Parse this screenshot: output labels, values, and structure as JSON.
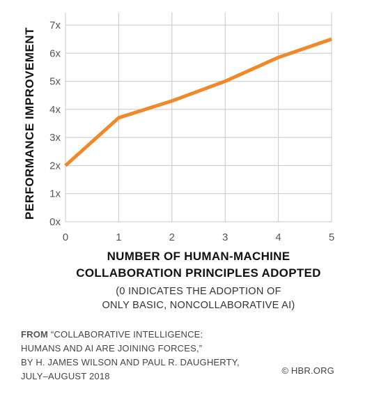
{
  "chart_data": {
    "type": "line",
    "title": "",
    "xlabel_lines": [
      "NUMBER OF HUMAN-MACHINE",
      "COLLABORATION PRINCIPLES ADOPTED"
    ],
    "xlabel_note_lines": [
      "(0 INDICATES THE ADOPTION OF",
      "ONLY BASIC, NONCOLLABORATIVE AI)"
    ],
    "ylabel": "PERFORMANCE IMPROVEMENT",
    "x": [
      0,
      1,
      2,
      3,
      4,
      5
    ],
    "series": [
      {
        "name": "",
        "color": "#f0892a",
        "values": [
          2.0,
          3.7,
          4.3,
          5.0,
          5.85,
          6.5
        ]
      }
    ],
    "xlim": [
      0,
      5
    ],
    "ylim": [
      0,
      7
    ],
    "x_ticks": [
      "0",
      "1",
      "2",
      "3",
      "4",
      "5"
    ],
    "y_ticks": [
      "0x",
      "1x",
      "2x",
      "3x",
      "4x",
      "5x",
      "6x",
      "7x"
    ],
    "grid": true,
    "grid_color": "#c8c8c8"
  },
  "footer": {
    "from_label": "FROM",
    "line1": "“COLLABORATIVE INTELLIGENCE:",
    "line2": "HUMANS AND AI ARE JOINING FORCES,”",
    "line3": "BY H. JAMES WILSON AND PAUL R. DAUGHERTY,",
    "line4": "JULY–AUGUST 2018",
    "copyright": "© HBR.ORG"
  }
}
